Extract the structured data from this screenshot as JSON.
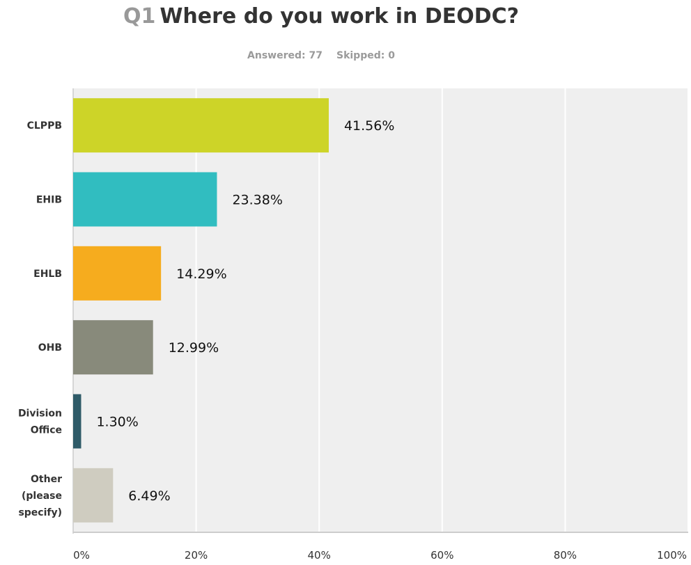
{
  "question": {
    "number": "Q1",
    "text": "Where do you work in DEODC?"
  },
  "summary": {
    "answered": "Answered: 77",
    "skipped": "Skipped: 0"
  },
  "chart_data": {
    "type": "bar",
    "orientation": "horizontal",
    "title": "Where do you work in DEODC?",
    "categories": [
      [
        "CLPPB"
      ],
      [
        "EHIB"
      ],
      [
        "EHLB"
      ],
      [
        "OHB"
      ],
      [
        "Division",
        "Office"
      ],
      [
        "Other",
        "(please",
        "specify)"
      ]
    ],
    "values": [
      41.56,
      23.38,
      14.29,
      12.99,
      1.3,
      6.49
    ],
    "value_labels": [
      "41.56%",
      "23.38%",
      "14.29%",
      "12.99%",
      "1.30%",
      "6.49%"
    ],
    "colors": [
      "#cdd428",
      "#31bdc0",
      "#f6ac1e",
      "#888a7b",
      "#2f5b68",
      "#cfccc0"
    ],
    "xlim": [
      0,
      100
    ],
    "xticks": [
      0,
      20,
      40,
      60,
      80,
      100
    ],
    "xtick_labels": [
      "0%",
      "20%",
      "40%",
      "60%",
      "80%",
      "100%"
    ],
    "grid": true,
    "plot_background": "#efefef",
    "grid_color": "#ffffff"
  }
}
